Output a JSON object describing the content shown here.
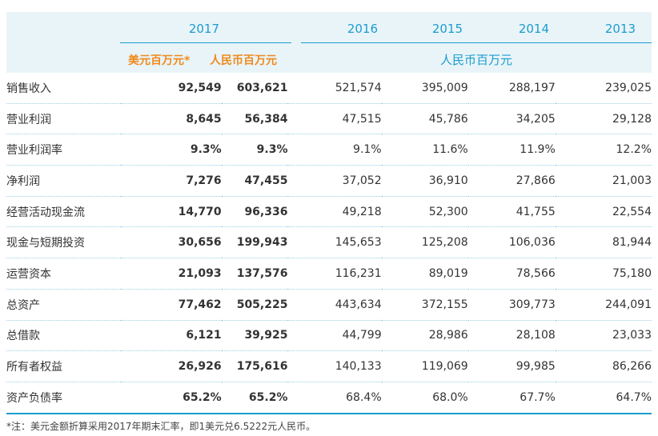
{
  "header": {
    "year_2017": "2017",
    "years_other": [
      "2016",
      "2015",
      "2014",
      "2013"
    ],
    "unit_usd": "美元百万元*",
    "unit_rmb_2017": "人民币百万元",
    "unit_rmb_others": "人民币百万元"
  },
  "rows": [
    {
      "label": "销售收入",
      "values": [
        "92,549",
        "603,621",
        "521,574",
        "395,009",
        "288,197",
        "239,025"
      ]
    },
    {
      "label": "营业利润",
      "values": [
        "8,645",
        "56,384",
        "47,515",
        "45,786",
        "34,205",
        "29,128"
      ]
    },
    {
      "label": "营业利润率",
      "values": [
        "9.3%",
        "9.3%",
        "9.1%",
        "11.6%",
        "11.9%",
        "12.2%"
      ]
    },
    {
      "label": "净利润",
      "values": [
        "7,276",
        "47,455",
        "37,052",
        "36,910",
        "27,866",
        "21,003"
      ]
    },
    {
      "label": "经营活动现金流",
      "values": [
        "14,770",
        "96,336",
        "49,218",
        "52,300",
        "41,755",
        "22,554"
      ]
    },
    {
      "label": "现金与短期投资",
      "values": [
        "30,656",
        "199,943",
        "145,653",
        "125,208",
        "106,036",
        "81,944"
      ]
    },
    {
      "label": "运营资本",
      "values": [
        "21,093",
        "137,576",
        "116,231",
        "89,019",
        "78,566",
        "75,180"
      ]
    },
    {
      "label": "总资产",
      "values": [
        "77,462",
        "505,225",
        "443,634",
        "372,155",
        "309,773",
        "244,091"
      ]
    },
    {
      "label": "总借款",
      "values": [
        "6,121",
        "39,925",
        "44,799",
        "28,986",
        "28,108",
        "23,033"
      ]
    },
    {
      "label": "所有者权益",
      "values": [
        "26,926",
        "175,616",
        "140,133",
        "119,069",
        "99,985",
        "86,266"
      ]
    },
    {
      "label": "资产负债率",
      "values": [
        "65.2%",
        "65.2%",
        "68.4%",
        "68.0%",
        "67.7%",
        "64.7%"
      ]
    }
  ],
  "footnote": "*注：美元金额折算采用2017年期末汇率，即1美元兑6.5222元人民币。",
  "colors": {
    "accent_blue": "#1a9dcf",
    "accent_orange": "#f08a1c",
    "header_bg": "#e9f4f8"
  }
}
